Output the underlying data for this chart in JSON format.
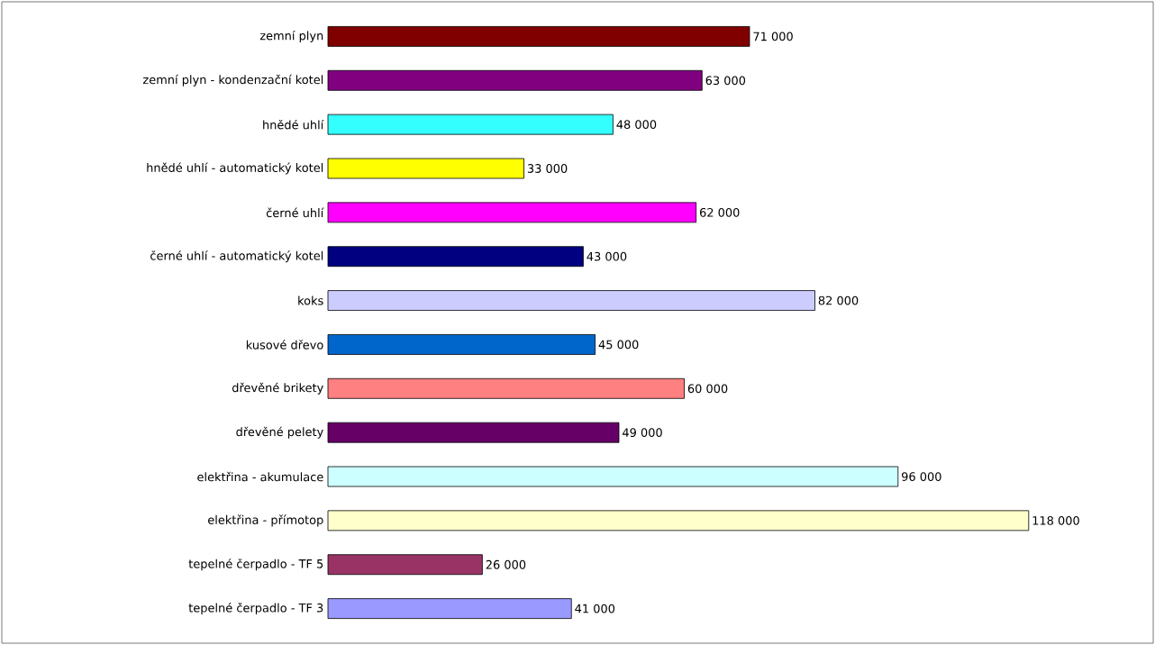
{
  "chart_data": {
    "type": "bar",
    "orientation": "horizontal",
    "categories": [
      "zemní plyn",
      "zemní plyn - kondenzační kotel",
      "hnědé uhlí",
      "hnědé uhlí - automatický kotel",
      "černé uhlí",
      "černé uhlí - automatický kotel",
      "koks",
      "kusové dřevo",
      "dřevěné brikety",
      "dřevěné pelety",
      "elektřina - akumulace",
      "elektřina - přímotop",
      "tepelné čerpadlo - TF 5",
      "tepelné čerpadlo - TF 3"
    ],
    "values": [
      71000,
      63000,
      48000,
      33000,
      62000,
      43000,
      82000,
      45000,
      60000,
      49000,
      96000,
      118000,
      26000,
      41000
    ],
    "colors": [
      "#800000",
      "#800080",
      "#33ffff",
      "#ffff00",
      "#ff00ff",
      "#000080",
      "#ccccff",
      "#0066cc",
      "#ff8080",
      "#660066",
      "#ccffff",
      "#ffffcc",
      "#993366",
      "#9999ff"
    ],
    "value_labels": [
      "71 000",
      "63 000",
      "48 000",
      "33 000",
      "62 000",
      "43 000",
      "82 000",
      "45 000",
      "60 000",
      "49 000",
      "96 000",
      "118 000",
      "26 000",
      "41 000"
    ]
  }
}
